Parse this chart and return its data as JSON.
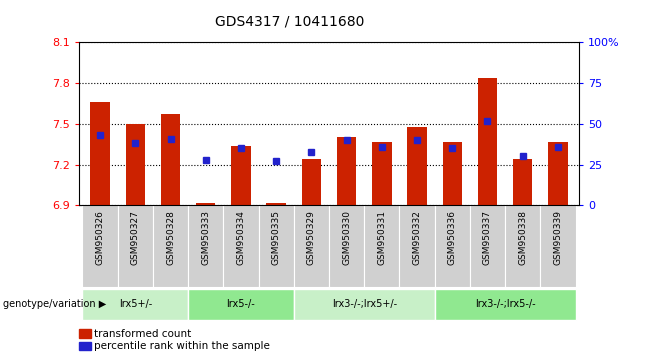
{
  "title": "GDS4317 / 10411680",
  "samples": [
    "GSM950326",
    "GSM950327",
    "GSM950328",
    "GSM950333",
    "GSM950334",
    "GSM950335",
    "GSM950329",
    "GSM950330",
    "GSM950331",
    "GSM950332",
    "GSM950336",
    "GSM950337",
    "GSM950338",
    "GSM950339"
  ],
  "red_values": [
    7.66,
    7.5,
    7.57,
    6.92,
    7.34,
    6.92,
    7.24,
    7.4,
    7.37,
    7.48,
    7.37,
    7.84,
    7.24,
    7.37
  ],
  "blue_values": [
    43,
    38,
    41,
    28,
    35,
    27,
    33,
    40,
    36,
    40,
    35,
    52,
    30,
    36
  ],
  "ymin": 6.9,
  "ymax": 8.1,
  "y2min": 0,
  "y2max": 100,
  "yticks": [
    6.9,
    7.2,
    7.5,
    7.8,
    8.1
  ],
  "y2ticks": [
    0,
    25,
    50,
    75,
    100
  ],
  "groups": [
    {
      "label": "lrx5+/-",
      "start": 0,
      "end": 3,
      "color": "#c8f0c8"
    },
    {
      "label": "lrx5-/-",
      "start": 3,
      "end": 6,
      "color": "#90e890"
    },
    {
      "label": "lrx3-/-;lrx5+/-",
      "start": 6,
      "end": 10,
      "color": "#c8f0c8"
    },
    {
      "label": "lrx3-/-;lrx5-/-",
      "start": 10,
      "end": 14,
      "color": "#90e890"
    }
  ],
  "bar_color": "#cc2200",
  "dot_color": "#2222cc",
  "bar_width": 0.55,
  "base_value": 6.9,
  "bg_gray": "#d0d0d0"
}
